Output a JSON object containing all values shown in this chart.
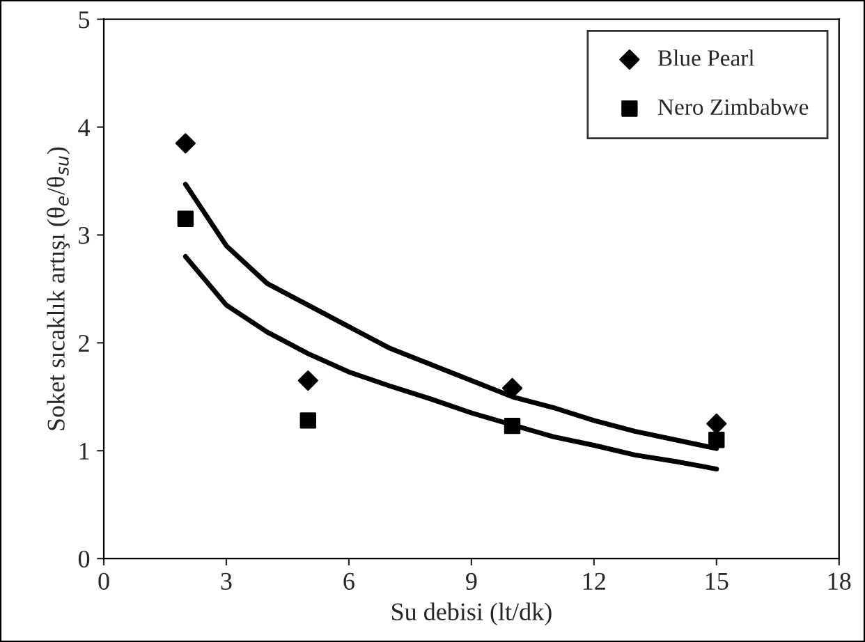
{
  "chart_data": {
    "type": "scatter",
    "xlabel": "Su debisi (lt/dk)",
    "ylabel": "Soket sıcaklık artışı (θ$_{e}$/θ$_{su}$)",
    "xlim": [
      0,
      18
    ],
    "xticks": [
      0,
      3,
      6,
      9,
      12,
      15,
      18
    ],
    "ylim": [
      0,
      5
    ],
    "yticks": [
      0,
      1,
      2,
      3,
      4,
      5
    ],
    "grid": false,
    "legend": "top right",
    "x": [
      2,
      5,
      10,
      15
    ],
    "series": [
      {
        "name": "Blue Pearl",
        "color": "#000000",
        "marker": "diamond",
        "values": [
          3.85,
          1.65,
          1.58,
          1.25
        ]
      },
      {
        "name": "Nero Zimbabwe",
        "color": "#000000",
        "marker": "square",
        "values": [
          3.15,
          1.28,
          1.23,
          1.1
        ]
      },
      {
        "type": "line",
        "color": "#000000",
        "marker": "none",
        "line_style": "solid",
        "x": [
          2,
          3,
          4,
          5,
          6,
          7,
          8,
          9,
          10,
          11,
          12,
          13,
          14,
          15
        ],
        "values": [
          3.47,
          2.9,
          2.55,
          2.35,
          2.15,
          1.95,
          1.8,
          1.65,
          1.5,
          1.4,
          1.28,
          1.18,
          1.1,
          1.02
        ]
      },
      {
        "type": "line",
        "color": "#000000",
        "marker": "none",
        "line_style": "solid",
        "x": [
          2,
          3,
          4,
          5,
          6,
          7,
          8,
          9,
          10,
          11,
          12,
          13,
          14,
          15
        ],
        "values": [
          2.8,
          2.35,
          2.1,
          1.9,
          1.73,
          1.6,
          1.48,
          1.35,
          1.24,
          1.13,
          1.05,
          0.96,
          0.9,
          0.83
        ]
      }
    ]
  }
}
